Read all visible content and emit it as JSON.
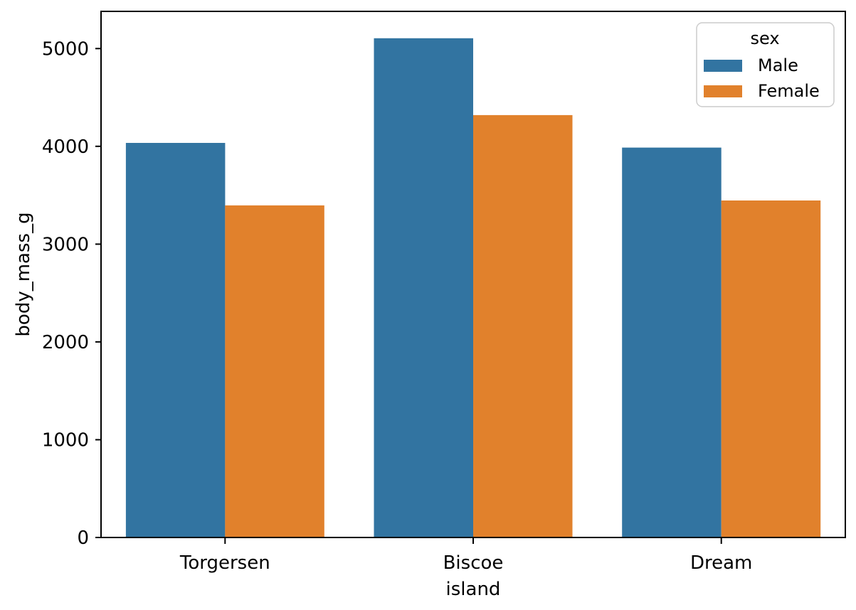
{
  "chart_data": {
    "type": "bar",
    "title": "",
    "xlabel": "island",
    "ylabel": "body_mass_g",
    "categories": [
      "Torgersen",
      "Biscoe",
      "Dream"
    ],
    "series": [
      {
        "name": "Male",
        "color": "#3274a1",
        "values": [
          4035,
          5105,
          3987
        ]
      },
      {
        "name": "Female",
        "color": "#e1812c",
        "values": [
          3396,
          4319,
          3446
        ]
      }
    ],
    "ylim": [
      0,
      5380
    ],
    "yticks": [
      0,
      1000,
      2000,
      3000,
      4000,
      5000
    ],
    "grid": false,
    "legend": {
      "title": "sex",
      "position": "upper right",
      "entries": [
        "Male",
        "Female"
      ]
    },
    "colors": {
      "male_bar": "#3274a1",
      "female_bar": "#e1812c",
      "axes": "#000000",
      "background": "#ffffff",
      "legend_border": "#cccccc"
    }
  }
}
